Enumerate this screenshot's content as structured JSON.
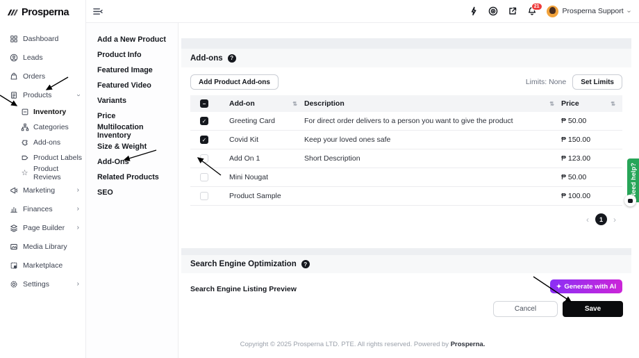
{
  "nav": {
    "logo": "Prosperna",
    "items": [
      {
        "label": "Dashboard"
      },
      {
        "label": "Leads"
      },
      {
        "label": "Orders"
      },
      {
        "label": "Products"
      },
      {
        "label": "Marketing"
      },
      {
        "label": "Finances"
      },
      {
        "label": "Page Builder"
      },
      {
        "label": "Media Library"
      },
      {
        "label": "Marketplace"
      },
      {
        "label": "Settings"
      }
    ],
    "products_submenu": [
      "Inventory",
      "Categories",
      "Add-ons",
      "Product Labels",
      "Product Reviews"
    ]
  },
  "product_menu": [
    "Add a New Product",
    "Product Info",
    "Featured Image",
    "Featured Video",
    "Variants",
    "Price",
    "Multilocation Inventory",
    "Size & Weight",
    "Add-Ons",
    "Related Products",
    "SEO"
  ],
  "topbar": {
    "user": "Prosperna Support",
    "notification_count": "21"
  },
  "addons": {
    "title": "Add-ons",
    "add_button": "Add Product Add-ons",
    "limits": "Limits: None",
    "set_limits": "Set Limits",
    "columns": {
      "addon": "Add-on",
      "description": "Description",
      "price": "Price"
    },
    "rows": [
      {
        "checked": true,
        "name": "Greeting Card",
        "description": "For direct order delivers to a person you want to give the product",
        "price": "₱ 50.00"
      },
      {
        "checked": true,
        "name": "Covid Kit",
        "description": "Keep your loved ones safe",
        "price": "₱ 150.00"
      },
      {
        "checked": false,
        "name": "Add On 1",
        "description": "Short Description",
        "price": "₱ 123.00"
      },
      {
        "checked": false,
        "name": "Mini Nougat",
        "description": "",
        "price": "₱ 50.00"
      },
      {
        "checked": false,
        "name": "Product Sample",
        "description": "",
        "price": "₱ 100.00"
      }
    ],
    "page": "1"
  },
  "seo": {
    "title": "Search Engine Optimization",
    "preview_label": "Search Engine Listing Preview",
    "generate_button": "Generate with AI",
    "cancel_button": "Cancel",
    "save_button": "Save"
  },
  "footer": {
    "text": "Copyright © 2025 Prosperna LTD. PTE. All rights reserved. Powered by ",
    "brand": "Prosperna."
  },
  "help": {
    "label": "Need help?"
  },
  "colors": {
    "accent_gradient_start": "#8b2ff5",
    "accent_gradient_end": "#cb25d8",
    "help_green": "#27a558",
    "badge_red": "#ee3b3b",
    "save_black": "#0a0b0d",
    "avatar_orange": "#f2a33c"
  }
}
